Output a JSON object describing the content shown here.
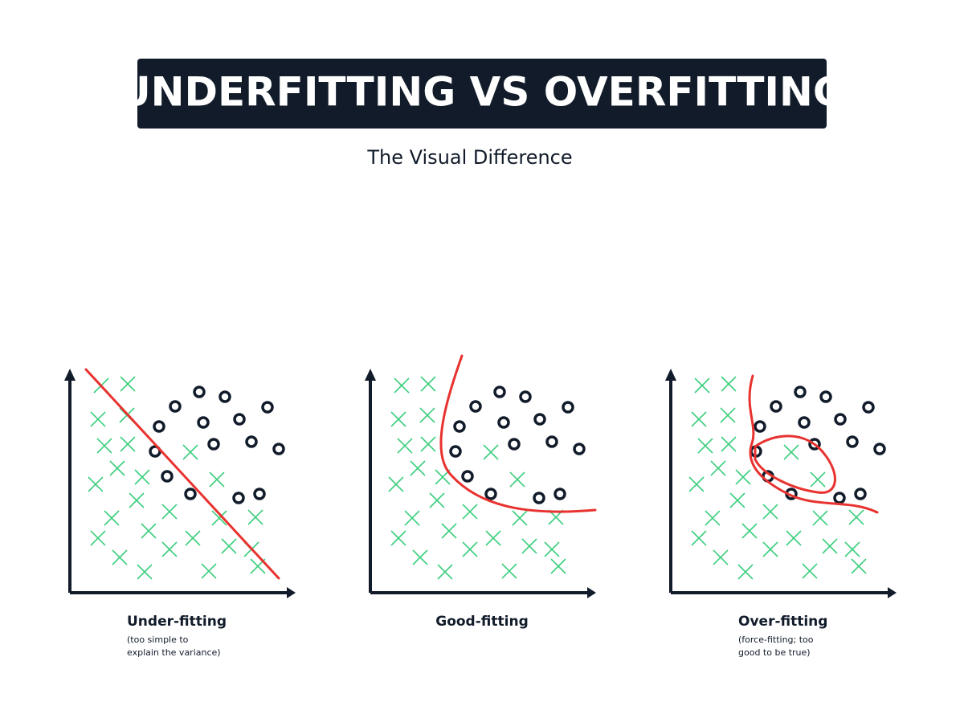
{
  "header": {
    "title": "UNDERFITTING VS OVERFITTING",
    "subtitle": "The Visual Difference"
  },
  "panels": [
    {
      "label": "Under-fitting",
      "note": [
        "(too simple to",
        "explain the variance)"
      ]
    },
    {
      "label": "Good-fitting"
    },
    {
      "label": "Over-fitting",
      "note": [
        "(force-fitting; too",
        "good to be true)"
      ]
    }
  ]
}
